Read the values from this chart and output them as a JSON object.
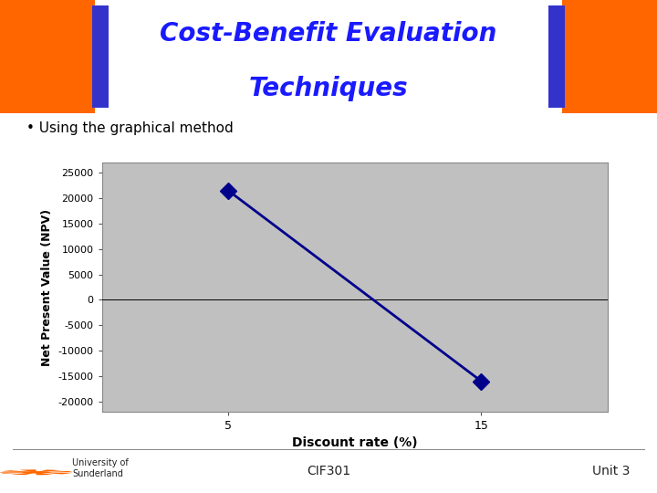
{
  "title_line1": "Cost-Benefit Evaluation",
  "title_line2": "Techniques",
  "title_color": "#1a1aff",
  "bullet_text": "Using the graphical method",
  "x_data": [
    5,
    15
  ],
  "y_data": [
    21500,
    -16000
  ],
  "x_tick_labels": [
    "5",
    "15"
  ],
  "x_tick_positions": [
    5,
    15
  ],
  "y_ticks": [
    -20000,
    -15000,
    -10000,
    -5000,
    0,
    5000,
    10000,
    15000,
    20000,
    25000
  ],
  "xlabel": "Discount rate (%)",
  "ylabel": "Net Present Value (NPV)",
  "xlim": [
    0,
    20
  ],
  "ylim": [
    -22000,
    27000
  ],
  "line_color": "#00008B",
  "marker_color": "#00008B",
  "plot_bg_color": "#C0C0C0",
  "slide_bg_color": "#FFFFFF",
  "footer_left": "University of\nSunderland",
  "footer_center": "CIF301",
  "footer_right": "Unit 3",
  "orange_color": "#FF6600",
  "blue_box_color": "#3333CC",
  "title_fontsize": 20,
  "bullet_fontsize": 11
}
